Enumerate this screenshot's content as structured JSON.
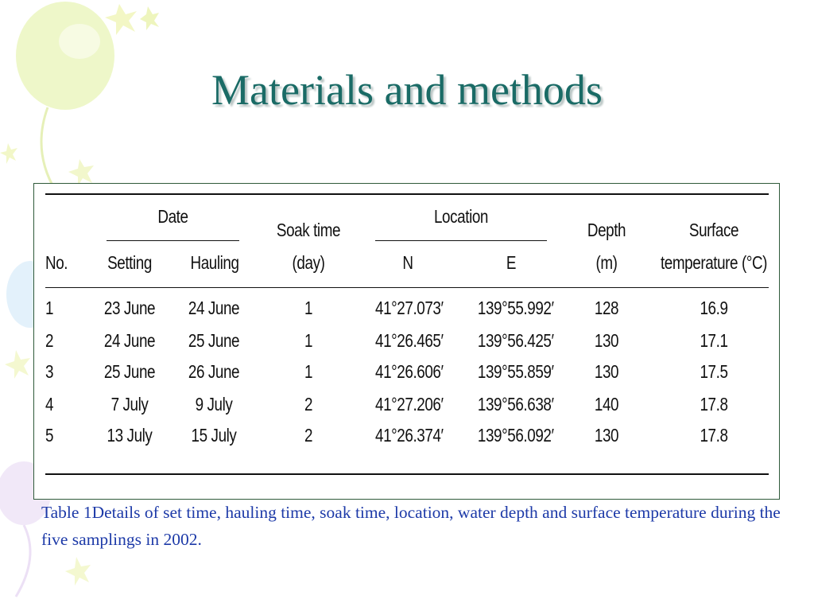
{
  "title": "Materials and methods",
  "table": {
    "group_headers": {
      "date": "Date",
      "soak_time_line1": "Soak time",
      "soak_time_line2": "(day)",
      "location": "Location",
      "depth_line1": "Depth",
      "depth_line2": "(m)",
      "surface_line1": "Surface",
      "surface_line2": "temperature (°C)"
    },
    "columns": {
      "no": "No.",
      "setting": "Setting",
      "hauling": "Hauling",
      "north": "N",
      "east": "E"
    },
    "rows": [
      [
        "1",
        "23 June",
        "24 June",
        "1",
        "41°27.073′",
        "139°55.992′",
        "128",
        "16.9"
      ],
      [
        "2",
        "24 June",
        "25 June",
        "1",
        "41°26.465′",
        "139°56.425′",
        "130",
        "17.1"
      ],
      [
        "3",
        "25 June",
        "26 June",
        "1",
        "41°26.606′",
        "139°55.859′",
        "130",
        "17.5"
      ],
      [
        "4",
        "7 July",
        "9 July",
        "2",
        "41°27.206′",
        "139°56.638′",
        "140",
        "17.8"
      ],
      [
        "5",
        "13 July",
        "15 July",
        "2",
        "41°26.374′",
        "139°56.092′",
        "130",
        "17.8"
      ]
    ]
  },
  "caption": "Table 1Details of set time, hauling time, soak time, location, water depth and surface temperature during the five samplings in 2002."
}
